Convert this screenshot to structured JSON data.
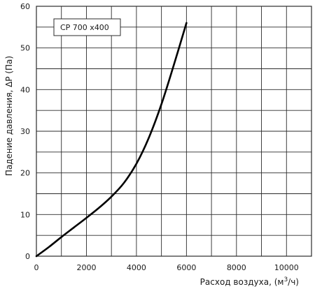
{
  "chart_data": {
    "type": "line",
    "title": "",
    "xlabel": "Расход воздуха, (м",
    "xlabel_sup": "3",
    "xlabel_tail": "/ч)",
    "ylabel": "Падение давления, ΔP (Па)",
    "xlim": [
      0,
      11000
    ],
    "ylim": [
      0,
      60
    ],
    "x_ticks": [
      0,
      2000,
      4000,
      6000,
      8000,
      10000
    ],
    "y_ticks": [
      0,
      10,
      20,
      30,
      40,
      50,
      60
    ],
    "grid": true,
    "grid_x_step": 1000,
    "grid_y_step": 5,
    "legend": {
      "label": "CP  700 x400",
      "placement": "top-left"
    },
    "series": [
      {
        "name": "CP  700 x400",
        "color": "#000000",
        "x": [
          0,
          500,
          1000,
          1500,
          2000,
          2500,
          3000,
          3500,
          4000,
          4500,
          5000,
          5500,
          6000
        ],
        "y": [
          0,
          2.2,
          4.6,
          6.9,
          9.2,
          11.6,
          14.3,
          17.6,
          22.2,
          28.5,
          36.5,
          46.0,
          56.0
        ]
      }
    ]
  }
}
